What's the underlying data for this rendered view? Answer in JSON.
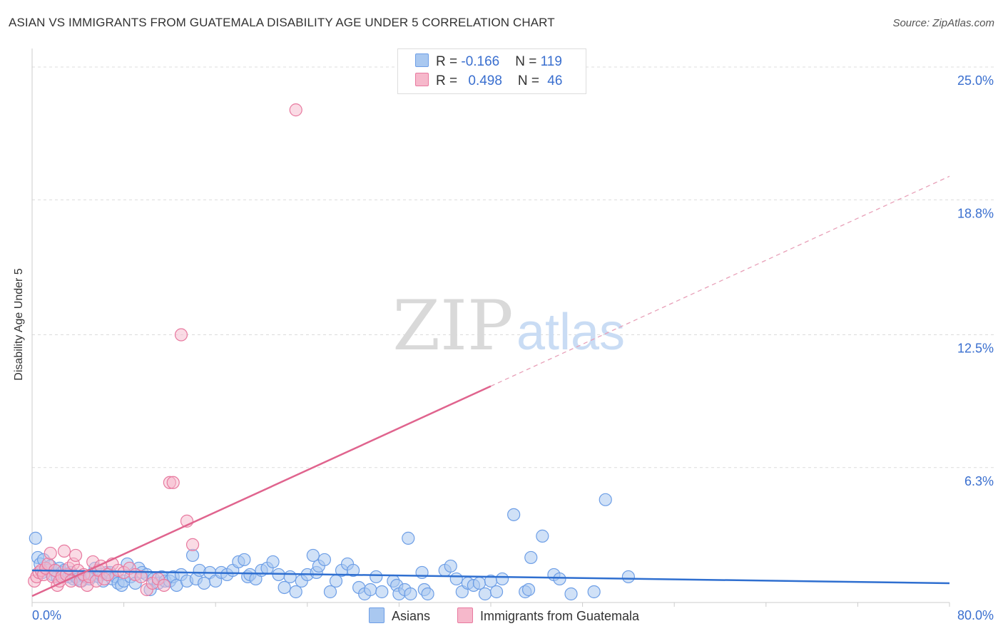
{
  "title": "ASIAN VS IMMIGRANTS FROM GUATEMALA DISABILITY AGE UNDER 5 CORRELATION CHART",
  "source": "Source: ZipAtlas.com",
  "watermark": {
    "zip": "ZIP",
    "atlas": "atlas"
  },
  "legend": {
    "rows": [
      {
        "r_label": "R = ",
        "r_value": "-0.166",
        "n_label": "N = ",
        "n_value": "119",
        "color": "#a9c8f0"
      },
      {
        "r_label": "R = ",
        "r_value": "0.498",
        "n_label": "N = ",
        "n_value": "46",
        "color": "#f6b8cb"
      }
    ]
  },
  "bottom_legend": [
    "Asians",
    "Immigrants from Guatemala"
  ],
  "chart_data": {
    "type": "scatter",
    "xlabel": "",
    "ylabel": "Disability Age Under 5",
    "xlim": [
      0,
      80
    ],
    "ylim": [
      0,
      26.3
    ],
    "x_tick_labels": [
      "0.0%",
      "80.0%"
    ],
    "y_ticks": [
      6.3,
      12.5,
      18.8,
      25.0
    ],
    "y_tick_labels": [
      "6.3%",
      "12.5%",
      "18.8%",
      "25.0%"
    ],
    "grid": true,
    "colors": {
      "asians": "#6d9ee6",
      "asians_fill": "#a9c8f0",
      "guatemala": "#e8799f",
      "guatemala_fill": "#f6b8cb",
      "tick_label": "#3a6fcf"
    },
    "series": [
      {
        "name": "Asians",
        "trend": {
          "x0": 0,
          "y0": 1.5,
          "x1": 80,
          "y1": 0.9
        },
        "points": [
          [
            0.3,
            3.0
          ],
          [
            0.5,
            2.1
          ],
          [
            0.7,
            1.8
          ],
          [
            0.9,
            1.4
          ],
          [
            1.0,
            2.0
          ],
          [
            1.2,
            1.6
          ],
          [
            1.4,
            1.5
          ],
          [
            1.6,
            1.7
          ],
          [
            1.8,
            1.3
          ],
          [
            2.0,
            1.5
          ],
          [
            2.2,
            1.2
          ],
          [
            2.4,
            1.6
          ],
          [
            2.6,
            1.4
          ],
          [
            2.8,
            1.5
          ],
          [
            3.0,
            1.3
          ],
          [
            3.2,
            1.2
          ],
          [
            3.4,
            1.4
          ],
          [
            3.6,
            1.1
          ],
          [
            3.8,
            1.2
          ],
          [
            4.0,
            1.1
          ],
          [
            4.3,
            1.0
          ],
          [
            4.6,
            1.2
          ],
          [
            5.0,
            1.1
          ],
          [
            5.2,
            1.3
          ],
          [
            5.5,
            1.6
          ],
          [
            5.8,
            1.2
          ],
          [
            6.0,
            1.3
          ],
          [
            6.2,
            1.0
          ],
          [
            6.5,
            1.4
          ],
          [
            6.8,
            1.4
          ],
          [
            7.0,
            1.1
          ],
          [
            7.3,
            1.2
          ],
          [
            7.5,
            0.9
          ],
          [
            7.8,
            0.8
          ],
          [
            8.0,
            1.0
          ],
          [
            8.3,
            1.8
          ],
          [
            8.6,
            1.2
          ],
          [
            9.0,
            0.9
          ],
          [
            9.3,
            1.6
          ],
          [
            9.6,
            1.4
          ],
          [
            10.0,
            1.3
          ],
          [
            10.3,
            0.6
          ],
          [
            10.6,
            1.1
          ],
          [
            11.0,
            0.9
          ],
          [
            11.3,
            1.2
          ],
          [
            11.6,
            1.0
          ],
          [
            12.0,
            1.0
          ],
          [
            12.3,
            1.2
          ],
          [
            12.6,
            0.8
          ],
          [
            13.0,
            1.3
          ],
          [
            13.5,
            1.0
          ],
          [
            14.0,
            2.2
          ],
          [
            14.3,
            1.1
          ],
          [
            14.6,
            1.5
          ],
          [
            15.0,
            0.9
          ],
          [
            15.5,
            1.4
          ],
          [
            16.0,
            1.0
          ],
          [
            16.5,
            1.4
          ],
          [
            17.0,
            1.3
          ],
          [
            17.5,
            1.5
          ],
          [
            18.0,
            1.9
          ],
          [
            18.5,
            2.0
          ],
          [
            18.8,
            1.2
          ],
          [
            19.0,
            1.3
          ],
          [
            19.5,
            1.1
          ],
          [
            20.0,
            1.5
          ],
          [
            20.5,
            1.6
          ],
          [
            21.0,
            1.9
          ],
          [
            21.5,
            1.3
          ],
          [
            22.0,
            0.7
          ],
          [
            22.5,
            1.2
          ],
          [
            23.0,
            0.5
          ],
          [
            23.5,
            1.0
          ],
          [
            24.0,
            1.3
          ],
          [
            24.5,
            2.2
          ],
          [
            24.8,
            1.4
          ],
          [
            25.0,
            1.7
          ],
          [
            25.5,
            2.0
          ],
          [
            26.0,
            0.5
          ],
          [
            26.5,
            1.0
          ],
          [
            27.0,
            1.5
          ],
          [
            27.5,
            1.8
          ],
          [
            28.0,
            1.5
          ],
          [
            28.5,
            0.7
          ],
          [
            29.0,
            0.4
          ],
          [
            29.5,
            0.6
          ],
          [
            30.0,
            1.2
          ],
          [
            30.5,
            0.5
          ],
          [
            31.5,
            1.0
          ],
          [
            31.8,
            0.8
          ],
          [
            32.0,
            0.4
          ],
          [
            32.5,
            0.6
          ],
          [
            32.8,
            3.0
          ],
          [
            33.0,
            0.4
          ],
          [
            34.0,
            1.4
          ],
          [
            34.2,
            0.6
          ],
          [
            34.5,
            0.4
          ],
          [
            36.0,
            1.5
          ],
          [
            36.5,
            1.7
          ],
          [
            37.0,
            1.1
          ],
          [
            37.5,
            0.5
          ],
          [
            38.0,
            0.9
          ],
          [
            38.5,
            0.8
          ],
          [
            39.0,
            0.9
          ],
          [
            39.5,
            0.4
          ],
          [
            40.0,
            1.0
          ],
          [
            40.5,
            0.5
          ],
          [
            41.0,
            1.1
          ],
          [
            42.0,
            4.1
          ],
          [
            43.0,
            0.5
          ],
          [
            43.3,
            0.6
          ],
          [
            43.5,
            2.1
          ],
          [
            44.5,
            3.1
          ],
          [
            45.5,
            1.3
          ],
          [
            46.0,
            1.1
          ],
          [
            47.0,
            0.4
          ],
          [
            49.0,
            0.5
          ],
          [
            50.0,
            4.8
          ],
          [
            52.0,
            1.2
          ]
        ]
      },
      {
        "name": "Immigrants from Guatemala",
        "trend": {
          "x0": 0,
          "y0": 0.3,
          "x1": 40,
          "y1": 10.1,
          "dash_x1": 80,
          "dash_y1": 19.9
        },
        "points": [
          [
            0.2,
            1.0
          ],
          [
            0.4,
            1.2
          ],
          [
            0.6,
            1.4
          ],
          [
            0.8,
            1.5
          ],
          [
            1.0,
            1.3
          ],
          [
            1.2,
            1.6
          ],
          [
            1.4,
            1.8
          ],
          [
            1.6,
            2.3
          ],
          [
            1.8,
            1.2
          ],
          [
            2.0,
            1.5
          ],
          [
            2.2,
            0.8
          ],
          [
            2.4,
            1.0
          ],
          [
            2.6,
            1.2
          ],
          [
            2.8,
            2.4
          ],
          [
            3.0,
            1.3
          ],
          [
            3.2,
            1.6
          ],
          [
            3.4,
            1.0
          ],
          [
            3.6,
            1.8
          ],
          [
            3.8,
            2.2
          ],
          [
            4.0,
            1.5
          ],
          [
            4.2,
            1.0
          ],
          [
            4.5,
            1.3
          ],
          [
            4.8,
            0.8
          ],
          [
            5.0,
            1.2
          ],
          [
            5.3,
            1.9
          ],
          [
            5.6,
            1.0
          ],
          [
            5.8,
            1.5
          ],
          [
            6.0,
            1.7
          ],
          [
            6.3,
            1.1
          ],
          [
            6.6,
            1.3
          ],
          [
            7.0,
            1.8
          ],
          [
            7.5,
            1.5
          ],
          [
            8.0,
            1.4
          ],
          [
            8.5,
            1.6
          ],
          [
            9.0,
            1.3
          ],
          [
            9.5,
            1.2
          ],
          [
            10.0,
            0.6
          ],
          [
            10.5,
            0.9
          ],
          [
            11.0,
            1.1
          ],
          [
            11.5,
            0.8
          ],
          [
            12.0,
            5.6
          ],
          [
            12.3,
            5.6
          ],
          [
            13.0,
            12.5
          ],
          [
            13.5,
            3.8
          ],
          [
            14.0,
            2.7
          ],
          [
            23.0,
            23.0
          ]
        ]
      }
    ]
  }
}
